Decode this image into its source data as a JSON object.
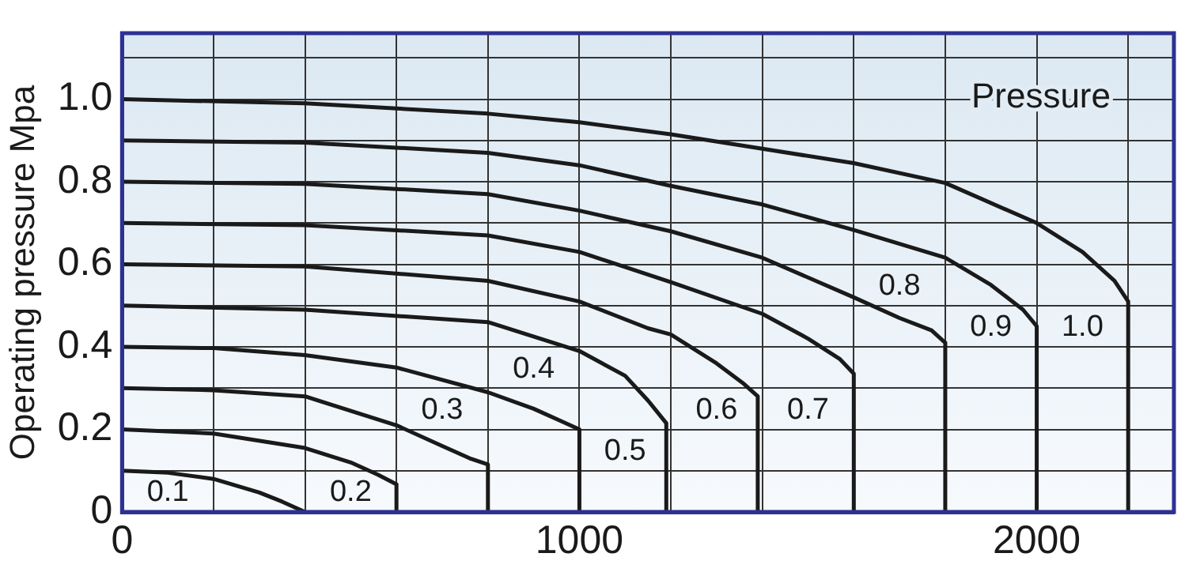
{
  "chart_data": {
    "type": "line",
    "ylabel": "Operating pressure Mpa",
    "annotations": [
      "Pressure"
    ],
    "xlim": [
      0,
      2300
    ],
    "xticks": [
      0,
      {
        "value": 200,
        "label": null
      },
      {
        "value": 400,
        "label": null
      },
      {
        "value": 600,
        "label": null
      },
      {
        "value": 800,
        "label": null
      },
      1000,
      {
        "value": 1200,
        "label": null
      },
      {
        "value": 1400,
        "label": null
      },
      {
        "value": 1600,
        "label": null
      },
      {
        "value": 1800,
        "label": null
      },
      2000,
      {
        "value": 2200,
        "label": null
      }
    ],
    "ylim": [
      0,
      1.16
    ],
    "yticks": [
      0,
      {
        "value": 0.1,
        "label": null
      },
      0.2,
      {
        "value": 0.3,
        "label": null
      },
      0.4,
      {
        "value": 0.5,
        "label": null
      },
      0.6,
      {
        "value": 0.7,
        "label": null
      },
      0.8,
      {
        "value": 0.9,
        "label": null
      },
      {
        "value": 1.0,
        "label": "1.0"
      },
      {
        "value": 1.1,
        "label": null
      }
    ],
    "grid": true,
    "legend": false,
    "marker": "none",
    "line_style": "solid",
    "series": [
      {
        "name": "0.1",
        "color": "#1a1a1a",
        "x": [
          0,
          100,
          200,
          300,
          350,
          400
        ],
        "values": [
          0.1,
          0.095,
          0.08,
          0.047,
          0.025,
          0
        ]
      },
      {
        "name": "0.2",
        "color": "#1a1a1a",
        "x": [
          0,
          200,
          400,
          500,
          560,
          600,
          600
        ],
        "values": [
          0.2,
          0.19,
          0.155,
          0.12,
          0.09,
          0.067,
          0
        ]
      },
      {
        "name": "0.3",
        "color": "#1a1a1a",
        "x": [
          0,
          200,
          400,
          600,
          700,
          760,
          800,
          800
        ],
        "values": [
          0.3,
          0.295,
          0.28,
          0.21,
          0.16,
          0.13,
          0.115,
          0
        ]
      },
      {
        "name": "0.4",
        "color": "#1a1a1a",
        "x": [
          0,
          200,
          400,
          600,
          800,
          900,
          960,
          1000,
          1000
        ],
        "values": [
          0.4,
          0.397,
          0.38,
          0.35,
          0.29,
          0.25,
          0.22,
          0.2,
          0
        ]
      },
      {
        "name": "0.5",
        "color": "#1a1a1a",
        "x": [
          0,
          400,
          800,
          1000,
          1100,
          1150,
          1190,
          1190
        ],
        "values": [
          0.5,
          0.49,
          0.46,
          0.39,
          0.33,
          0.27,
          0.215,
          0
        ]
      },
      {
        "name": "0.6",
        "color": "#1a1a1a",
        "x": [
          0,
          400,
          800,
          1000,
          1150,
          1200,
          1300,
          1360,
          1390,
          1390
        ],
        "values": [
          0.6,
          0.595,
          0.56,
          0.51,
          0.445,
          0.43,
          0.36,
          0.31,
          0.28,
          0
        ]
      },
      {
        "name": "0.7",
        "color": "#1a1a1a",
        "x": [
          0,
          400,
          800,
          1000,
          1200,
          1400,
          1500,
          1570,
          1600,
          1600
        ],
        "values": [
          0.7,
          0.695,
          0.67,
          0.63,
          0.557,
          0.48,
          0.42,
          0.37,
          0.335,
          0
        ]
      },
      {
        "name": "0.8",
        "color": "#1a1a1a",
        "x": [
          0,
          400,
          800,
          1000,
          1200,
          1400,
          1600,
          1700,
          1770,
          1800,
          1800
        ],
        "values": [
          0.8,
          0.795,
          0.77,
          0.73,
          0.68,
          0.616,
          0.52,
          0.47,
          0.44,
          0.41,
          0
        ]
      },
      {
        "name": "0.9",
        "color": "#1a1a1a",
        "x": [
          0,
          400,
          800,
          1000,
          1200,
          1400,
          1600,
          1800,
          1900,
          1970,
          2000,
          2000
        ],
        "values": [
          0.9,
          0.895,
          0.87,
          0.84,
          0.79,
          0.745,
          0.683,
          0.616,
          0.55,
          0.49,
          0.45,
          0
        ]
      },
      {
        "name": "1.0",
        "color": "#1a1a1a",
        "x": [
          0,
          400,
          800,
          1000,
          1200,
          1400,
          1600,
          1800,
          2000,
          2100,
          2170,
          2200,
          2200
        ],
        "values": [
          1.0,
          0.99,
          0.965,
          0.944,
          0.915,
          0.88,
          0.845,
          0.797,
          0.7,
          0.63,
          0.56,
          0.51,
          0
        ]
      }
    ]
  }
}
